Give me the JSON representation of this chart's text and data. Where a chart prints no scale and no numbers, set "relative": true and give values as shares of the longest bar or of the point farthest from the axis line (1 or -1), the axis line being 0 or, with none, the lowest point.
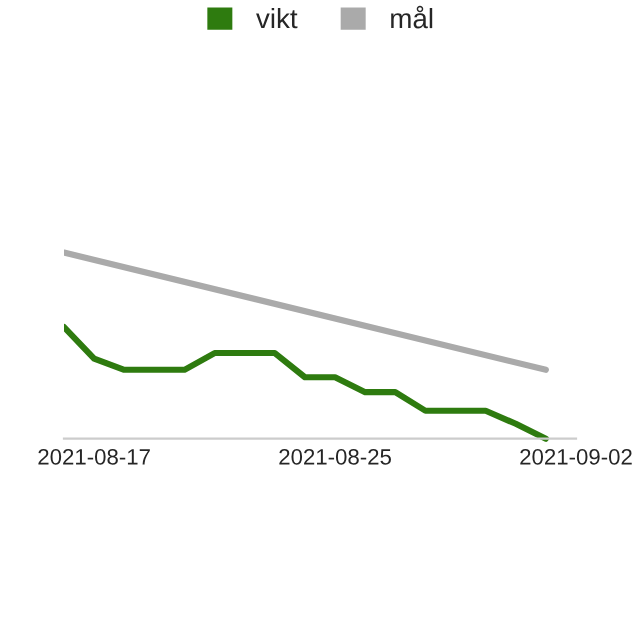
{
  "chart_data": {
    "type": "line",
    "relative": true,
    "legend": "top",
    "grid": false,
    "marker": "none",
    "line_style": "solid",
    "xlim": [
      "2021-08-16",
      "2021-09-02"
    ],
    "xticks": [
      {
        "value": "2021-08-17",
        "label": "2021-08-17"
      },
      {
        "value": "2021-08-25",
        "label": "2021-08-25"
      },
      {
        "value": "2021-09-02",
        "label": "2021-09-02"
      }
    ],
    "series": [
      {
        "name": "vikt",
        "color": "#2e7b0f",
        "x": [
          "2021-08-16",
          "2021-08-17",
          "2021-08-18",
          "2021-08-19",
          "2021-08-20",
          "2021-08-21",
          "2021-08-22",
          "2021-08-23",
          "2021-08-24",
          "2021-08-25",
          "2021-08-26",
          "2021-08-27",
          "2021-08-28",
          "2021-08-29",
          "2021-08-30",
          "2021-08-31",
          "2021-09-01"
        ],
        "values": [
          0.6,
          0.43,
          0.37,
          0.37,
          0.37,
          0.46,
          0.46,
          0.46,
          0.33,
          0.33,
          0.25,
          0.25,
          0.15,
          0.15,
          0.15,
          0.08,
          0
        ]
      },
      {
        "name": "mål",
        "color": "#aaaaaa",
        "x": [
          "2021-08-16",
          "2021-09-01"
        ],
        "values": [
          1,
          0.37
        ]
      }
    ]
  }
}
